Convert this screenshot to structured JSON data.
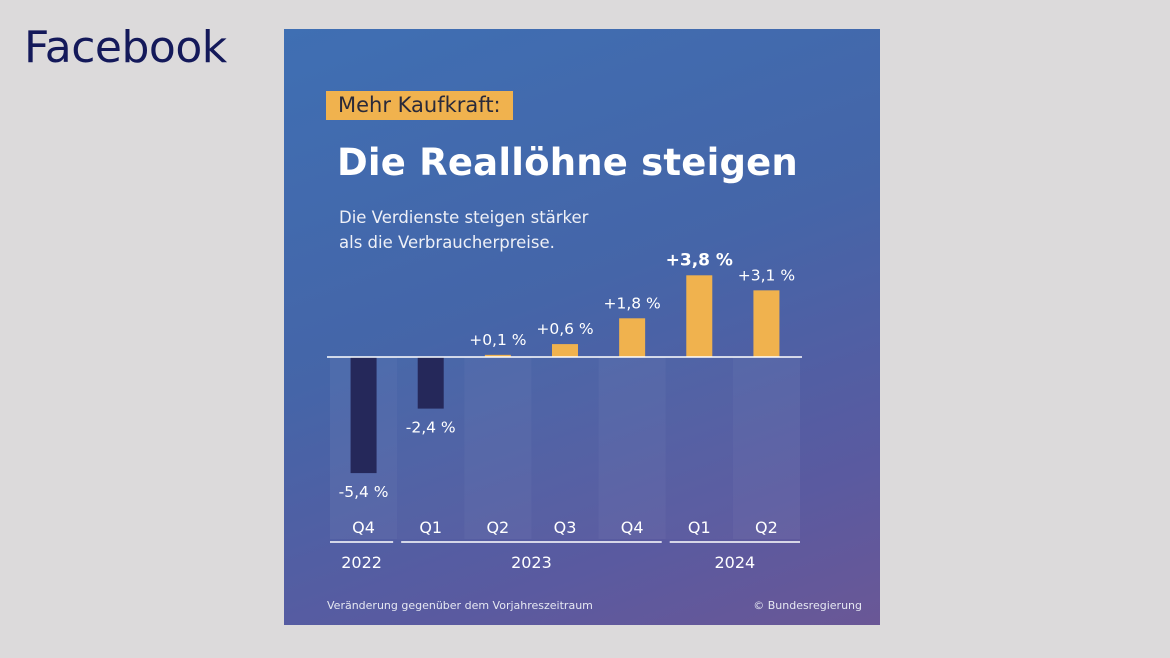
{
  "slide": {
    "title": "Facebook"
  },
  "card": {
    "badge": "Mehr Kaufkraft:",
    "headline": "Die Reallöhne steigen",
    "subtitle_line1": "Die Verdienste steigen stärker",
    "subtitle_line2": "als die Verbraucherpreise.",
    "footnote": "Veränderung gegenüber dem Vorjahreszeitraum",
    "credit": "© Bundesregierung"
  },
  "chart_data": {
    "type": "bar",
    "categories": [
      "Q4",
      "Q1",
      "Q2",
      "Q3",
      "Q4",
      "Q1",
      "Q2"
    ],
    "values": [
      -5.4,
      -2.4,
      0.1,
      0.6,
      1.8,
      3.8,
      3.1
    ],
    "data_labels": [
      "-5,4 %",
      "-2,4 %",
      "+0,1 %",
      "+0,6 %",
      "+1,8 %",
      "+3,8 %",
      "+3,1 %"
    ],
    "highlight_label_index": 5,
    "years": [
      {
        "label": "2022",
        "span": [
          0,
          0
        ]
      },
      {
        "label": "2023",
        "span": [
          1,
          4
        ]
      },
      {
        "label": "2024",
        "span": [
          5,
          6
        ]
      }
    ],
    "colors": {
      "positive": "#f0b24e",
      "negative": "#25285a",
      "axis": "#ffffff",
      "label": "#ffffff"
    }
  }
}
